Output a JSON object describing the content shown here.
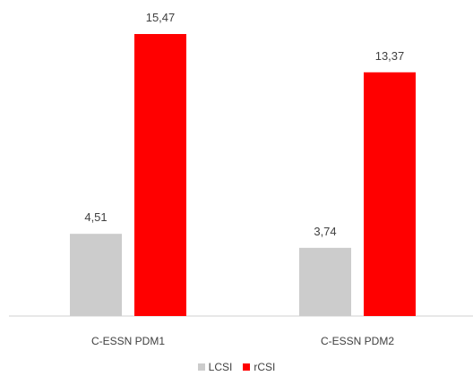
{
  "chart_data": {
    "type": "bar",
    "categories": [
      "C-ESSN PDM1",
      "C-ESSN PDM2"
    ],
    "series": [
      {
        "name": "LCSI",
        "values": [
          4.51,
          3.74
        ],
        "labels": [
          "4,51",
          "3,74"
        ],
        "color": "#cccccc"
      },
      {
        "name": "rCSI",
        "values": [
          15.47,
          13.37
        ],
        "labels": [
          "15,47",
          "13,37"
        ],
        "color": "#ff0000"
      }
    ],
    "title": "",
    "xlabel": "",
    "ylabel": "",
    "ylim": [
      0,
      15.47
    ],
    "grid": false,
    "legend": "bottom"
  }
}
